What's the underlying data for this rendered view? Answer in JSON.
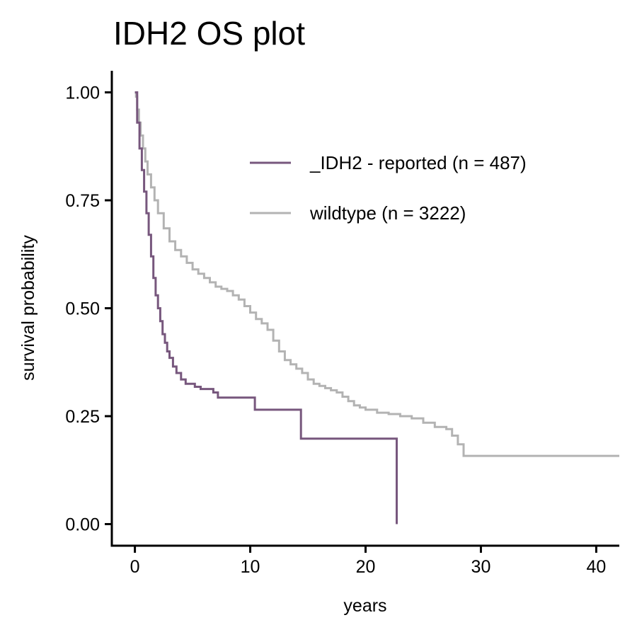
{
  "chart_data": {
    "type": "line",
    "step": true,
    "title": "IDH2 OS plot",
    "xlabel": "years",
    "ylabel": "survival probability",
    "xlim": [
      -2,
      42
    ],
    "ylim": [
      -0.05,
      1.05
    ],
    "x_ticks": [
      0,
      10,
      20,
      30,
      40
    ],
    "y_ticks": [
      0.0,
      0.25,
      0.5,
      0.75,
      1.0
    ],
    "x_tick_labels": [
      "0",
      "10",
      "20",
      "30",
      "40"
    ],
    "y_tick_labels": [
      "0.00",
      "0.25",
      "0.50",
      "0.75",
      "1.00"
    ],
    "grid": false,
    "legend_position": "top-right",
    "series": [
      {
        "name": "_IDH2 - reported (n = 487)",
        "color": "#77577D",
        "x": [
          0,
          0.2,
          0.4,
          0.6,
          0.8,
          1.0,
          1.2,
          1.4,
          1.6,
          1.8,
          2.0,
          2.2,
          2.4,
          2.6,
          2.8,
          3.0,
          3.3,
          3.6,
          4.0,
          4.4,
          4.8,
          5.2,
          5.7,
          6.2,
          6.8,
          7.2,
          8.0,
          9.0,
          10.4,
          11.5,
          12.5,
          14.4,
          16.0,
          18.0,
          20.0,
          22.7
        ],
        "y": [
          1.0,
          0.93,
          0.87,
          0.82,
          0.77,
          0.72,
          0.67,
          0.62,
          0.57,
          0.53,
          0.5,
          0.47,
          0.44,
          0.42,
          0.4,
          0.385,
          0.365,
          0.35,
          0.335,
          0.325,
          0.325,
          0.318,
          0.313,
          0.313,
          0.305,
          0.293,
          0.293,
          0.293,
          0.265,
          0.265,
          0.265,
          0.198,
          0.198,
          0.198,
          0.198,
          0.0
        ]
      },
      {
        "name": "wildtype (n = 3222)",
        "color": "#B3B3B3",
        "x": [
          0,
          0.1,
          0.2,
          0.35,
          0.5,
          0.7,
          0.9,
          1.1,
          1.4,
          1.7,
          2.0,
          2.5,
          3.0,
          3.5,
          4.0,
          4.5,
          5.0,
          5.5,
          6.0,
          6.5,
          7.0,
          7.5,
          8.0,
          8.5,
          9.0,
          9.5,
          10.0,
          10.5,
          11.0,
          11.5,
          12.0,
          12.5,
          13.0,
          13.5,
          14.0,
          14.5,
          15.0,
          15.5,
          16.0,
          16.5,
          17.0,
          17.5,
          18.0,
          18.5,
          19.0,
          19.5,
          20.0,
          21.0,
          22.0,
          23.0,
          24.0,
          25.0,
          26.0,
          27.0,
          27.5,
          28.0,
          28.5,
          30.0,
          35.0,
          42.0
        ],
        "y": [
          1.0,
          0.99,
          0.96,
          0.93,
          0.9,
          0.87,
          0.84,
          0.81,
          0.78,
          0.75,
          0.72,
          0.685,
          0.655,
          0.635,
          0.62,
          0.605,
          0.59,
          0.58,
          0.57,
          0.56,
          0.55,
          0.545,
          0.54,
          0.53,
          0.52,
          0.505,
          0.49,
          0.475,
          0.465,
          0.45,
          0.425,
          0.4,
          0.38,
          0.37,
          0.36,
          0.35,
          0.335,
          0.325,
          0.32,
          0.315,
          0.31,
          0.305,
          0.295,
          0.285,
          0.275,
          0.27,
          0.265,
          0.258,
          0.255,
          0.25,
          0.245,
          0.235,
          0.225,
          0.22,
          0.205,
          0.185,
          0.158,
          0.158,
          0.158,
          0.158
        ]
      }
    ]
  }
}
